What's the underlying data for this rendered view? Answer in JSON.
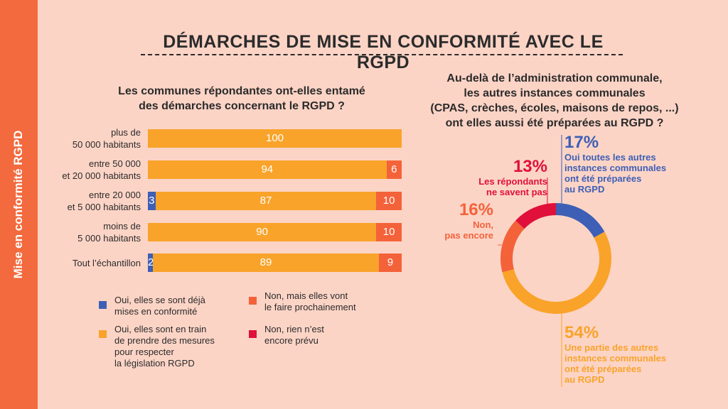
{
  "sidebar": {
    "label": "Mise en conformité RGPD"
  },
  "title": "DÉMARCHES DE MISE EN CONFORMITÉ AVEC LE RGPD",
  "colors": {
    "background": "#fcd4c6",
    "side_band": "#f26a3e",
    "blue": "#3d5fb5",
    "yellow": "#f9a32a",
    "orange": "#f4623a",
    "red": "#e0103a"
  },
  "left_chart": {
    "question_lines": [
      "Les communes répondantes ont-elles entamé",
      "des démarches concernant le RGPD ?"
    ]
  },
  "right_chart": {
    "question_lines": [
      "Au-delà de l’administration communale,",
      "les autres instances communales",
      "(CPAS, crèches, écoles, maisons de repos, ...)",
      "ont elles aussi été préparées au RGPD ?"
    ]
  },
  "legend": [
    {
      "key": "blue",
      "lines": [
        "Oui, elles se sont déjà",
        "mises en conformité"
      ]
    },
    {
      "key": "orange",
      "lines": [
        "Non, mais elles vont",
        "le faire prochainement"
      ]
    },
    {
      "key": "yellow",
      "lines": [
        "Oui, elles sont en train",
        "de prendre des mesures",
        "pour respecter",
        "la législation RGPD"
      ]
    },
    {
      "key": "red",
      "lines": [
        "Non, rien n’est",
        "encore prévu"
      ]
    }
  ],
  "chart_data": [
    {
      "type": "bar",
      "orientation": "horizontal",
      "stacked": true,
      "title": "Les communes répondantes ont-elles entamé des démarches concernant le RGPD ?",
      "categories": [
        [
          "plus de",
          "50 000 habitants"
        ],
        [
          "entre 50 000",
          "et 20 000 habitants"
        ],
        [
          "entre 20 000",
          "et 5 000 habitants"
        ],
        [
          "moins de",
          "5 000 habitants"
        ],
        [
          "Tout l’échantillon"
        ]
      ],
      "series": [
        {
          "name": "Oui, elles se sont déjà mises en conformité",
          "color": "#3d5fb5",
          "values": [
            0,
            0,
            3,
            0,
            2
          ]
        },
        {
          "name": "Oui, elles sont en train de prendre des mesures pour respecter la législation RGPD",
          "color": "#f9a32a",
          "values": [
            100,
            94,
            87,
            90,
            89
          ]
        },
        {
          "name": "Non, mais elles vont le faire prochainement",
          "color": "#f4623a",
          "values": [
            0,
            6,
            10,
            10,
            9
          ]
        },
        {
          "name": "Non, rien n’est encore prévu",
          "color": "#e0103a",
          "values": [
            0,
            0,
            0,
            0,
            0
          ]
        }
      ],
      "xlim": [
        0,
        100
      ]
    },
    {
      "type": "pie",
      "donut": true,
      "title": "Au-delà de l’administration communale, les autres instances communales (CPAS, crèches, écoles, maisons de repos, ...) ont elles aussi été préparées au RGPD ?",
      "slices": [
        {
          "label": "17%",
          "value": 17,
          "color": "#3d5fb5",
          "desc_lines": [
            "Oui toutes les autres",
            "instances communales",
            "ont été préparées",
            "au RGPD"
          ]
        },
        {
          "label": "54%",
          "value": 54,
          "color": "#f9a32a",
          "desc_lines": [
            "Une partie des autres",
            "instances communales",
            "ont été préparées",
            "au RGPD"
          ]
        },
        {
          "label": "16%",
          "value": 16,
          "color": "#f4623a",
          "desc_lines": [
            "Non,",
            "pas encore"
          ]
        },
        {
          "label": "13%",
          "value": 13,
          "color": "#e0103a",
          "desc_lines": [
            "Les répondants",
            "ne savent pas"
          ]
        }
      ]
    }
  ]
}
